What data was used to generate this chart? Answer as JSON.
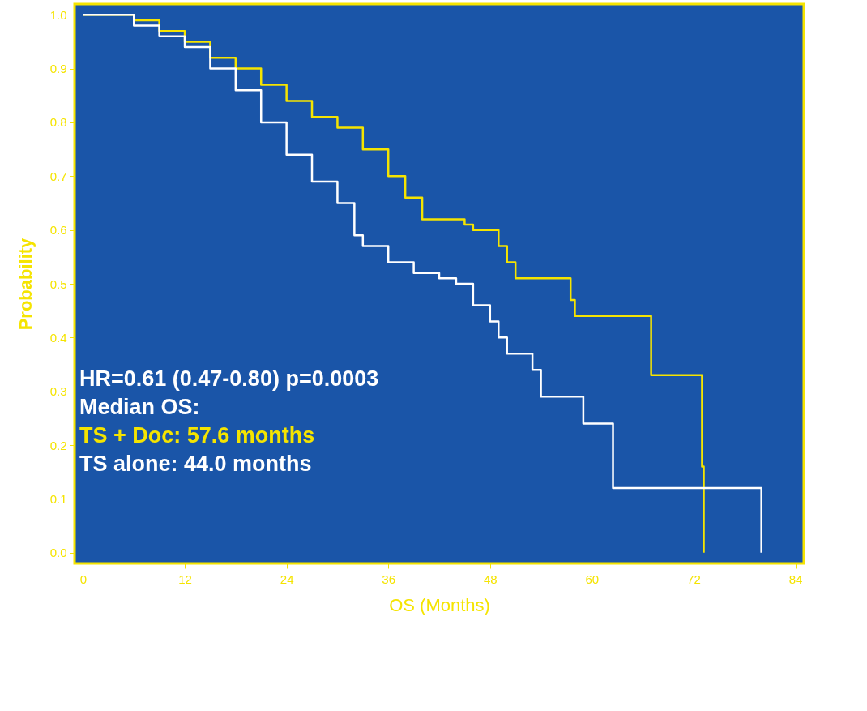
{
  "chart_data": {
    "type": "step",
    "xlabel": "OS (Months)",
    "ylabel": "Probability",
    "xlim": [
      -1,
      85
    ],
    "ylim": [
      -0.02,
      1.02
    ],
    "xticks": [
      0,
      12,
      24,
      36,
      48,
      60,
      72,
      84
    ],
    "yticks": [
      {
        "value": 0,
        "label": "0.0"
      },
      0.1,
      0.2,
      0.3,
      0.4,
      0.5,
      0.6,
      0.7,
      0.8,
      0.9,
      {
        "value": 1,
        "label": "1.0"
      }
    ],
    "grid": false,
    "legend": false,
    "marker": "none",
    "line_style": "solid",
    "series": [
      {
        "color": "#f5e400",
        "x": [
          0,
          6,
          9,
          12,
          15,
          18,
          21,
          24,
          27,
          30,
          33,
          36,
          38,
          40,
          45,
          46,
          49,
          50,
          51,
          57.5,
          58,
          67,
          73,
          73.2
        ],
        "values": [
          1.0,
          0.99,
          0.97,
          0.95,
          0.92,
          0.9,
          0.87,
          0.84,
          0.81,
          0.79,
          0.75,
          0.7,
          0.66,
          0.62,
          0.61,
          0.6,
          0.57,
          0.54,
          0.51,
          0.47,
          0.44,
          0.33,
          0.16,
          0.0
        ]
      },
      {
        "color": "#ffffff",
        "x": [
          0,
          6,
          9,
          12,
          15,
          18,
          21,
          24,
          27,
          30,
          32,
          33,
          36,
          39,
          42,
          44,
          46,
          48,
          49,
          50,
          53,
          54,
          59,
          62.5,
          80
        ],
        "values": [
          1.0,
          0.98,
          0.96,
          0.94,
          0.9,
          0.86,
          0.8,
          0.74,
          0.69,
          0.65,
          0.59,
          0.57,
          0.54,
          0.52,
          0.51,
          0.5,
          0.46,
          0.43,
          0.4,
          0.37,
          0.34,
          0.29,
          0.24,
          0.12,
          0.0
        ]
      }
    ],
    "annotations": [
      "HR=0.61 (0.47-0.80) p=0.0003",
      "Median OS:",
      "TS + Doc: 57.6 months",
      "TS alone: 44.0 months"
    ]
  }
}
